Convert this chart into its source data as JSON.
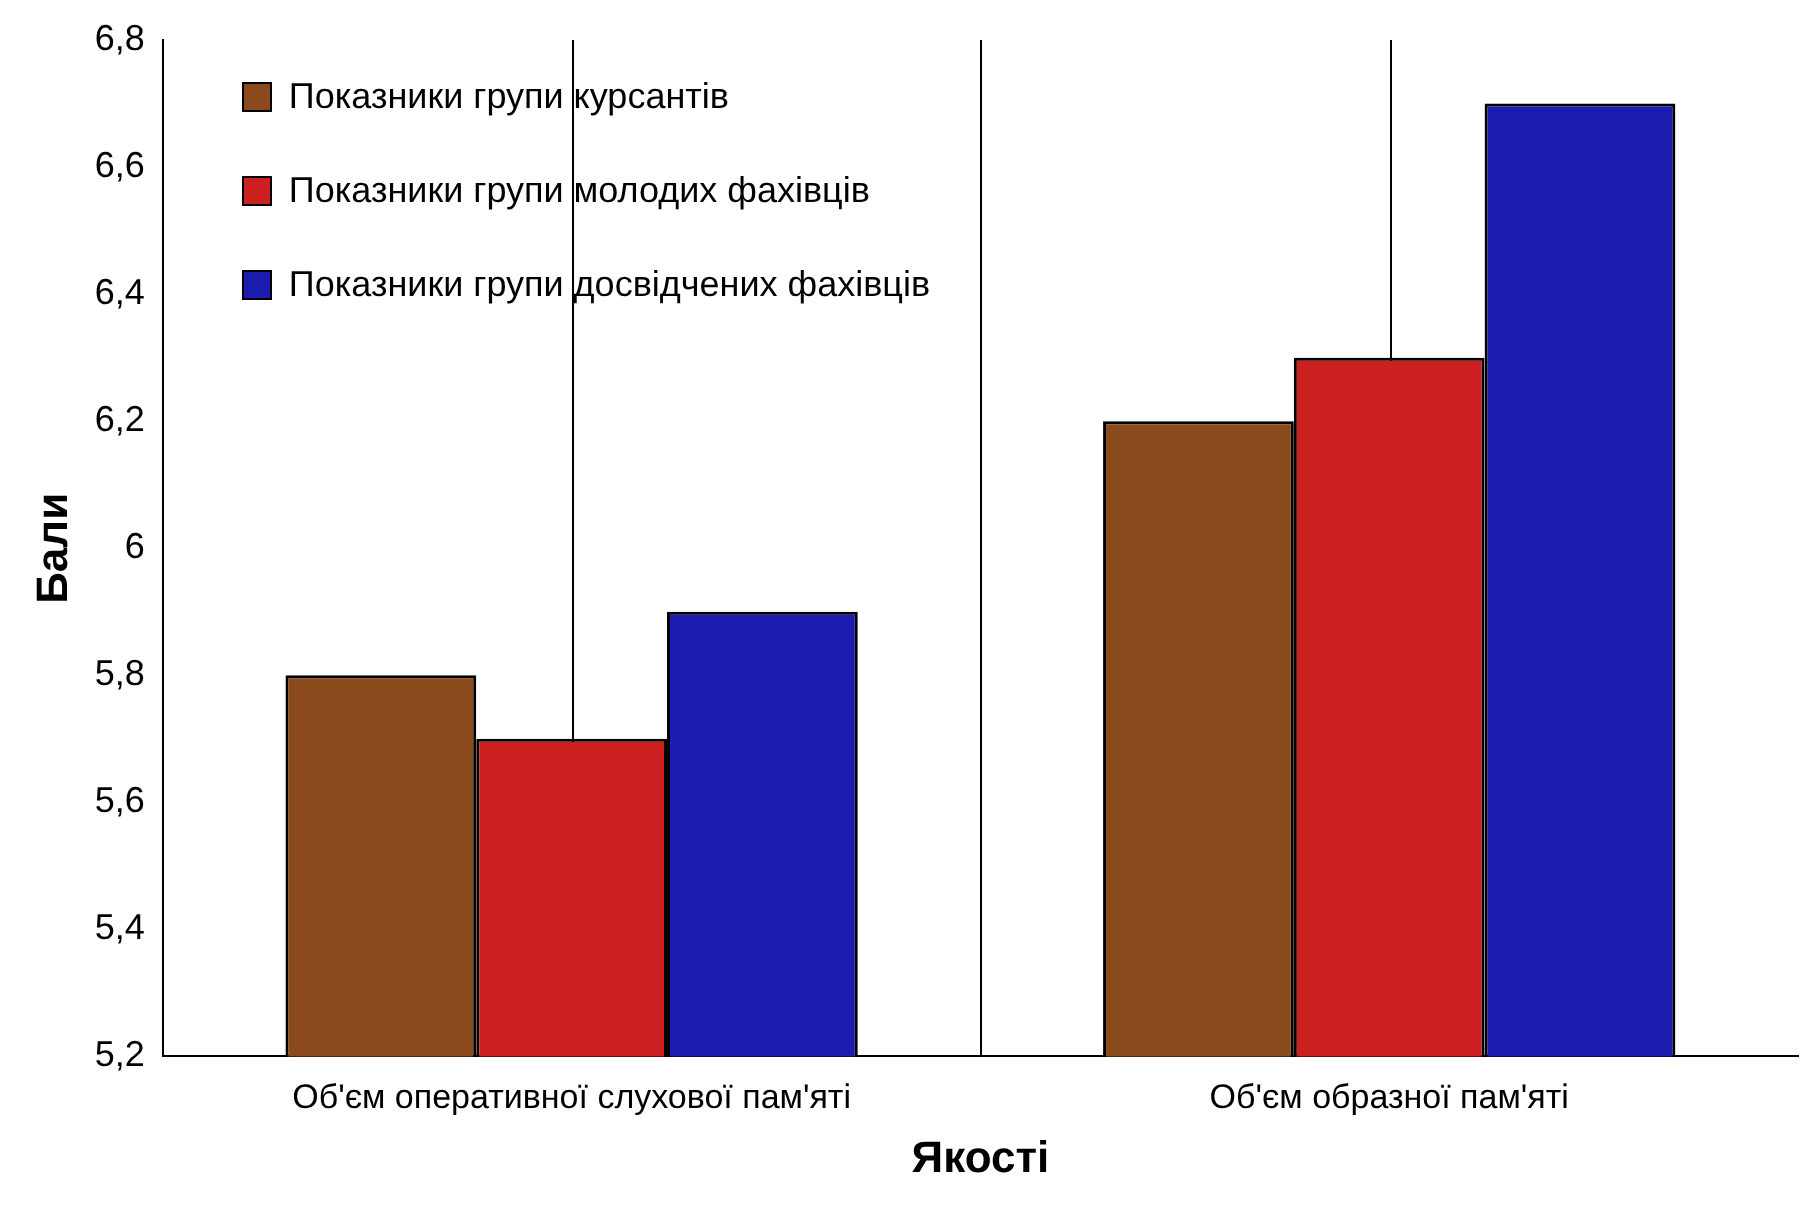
{
  "chart_data": {
    "type": "bar",
    "xlabel": "Якості",
    "ylabel": "Бали",
    "categories": [
      "Об'єм оперативної слухової пам'яті",
      "Об'єм образної пам'яті"
    ],
    "series": [
      {
        "name": "Показники групи курсантів",
        "color": "#8b4a1c",
        "values": [
          5.8,
          6.2
        ]
      },
      {
        "name": "Показники групи молодих фахівців",
        "color": "#cc2020",
        "values": [
          5.7,
          6.3
        ]
      },
      {
        "name": "Показники групи досвідчених фахівців",
        "color": "#1c1cb0",
        "values": [
          5.9,
          6.7
        ]
      }
    ],
    "ylim": [
      5.2,
      6.8
    ],
    "yticks": [
      {
        "value": 5.2,
        "label": "5,2"
      },
      {
        "value": 5.4,
        "label": "5,4"
      },
      {
        "value": 5.6,
        "label": "5,6"
      },
      {
        "value": 5.8,
        "label": "5,8"
      },
      {
        "value": 6,
        "label": "6"
      },
      {
        "value": 6.2,
        "label": "6,2"
      },
      {
        "value": 6.4,
        "label": "6,4"
      },
      {
        "value": 6.6,
        "label": "6,6"
      },
      {
        "value": 6.8,
        "label": "6,8"
      }
    ],
    "grid": "x",
    "legend": "top left"
  }
}
